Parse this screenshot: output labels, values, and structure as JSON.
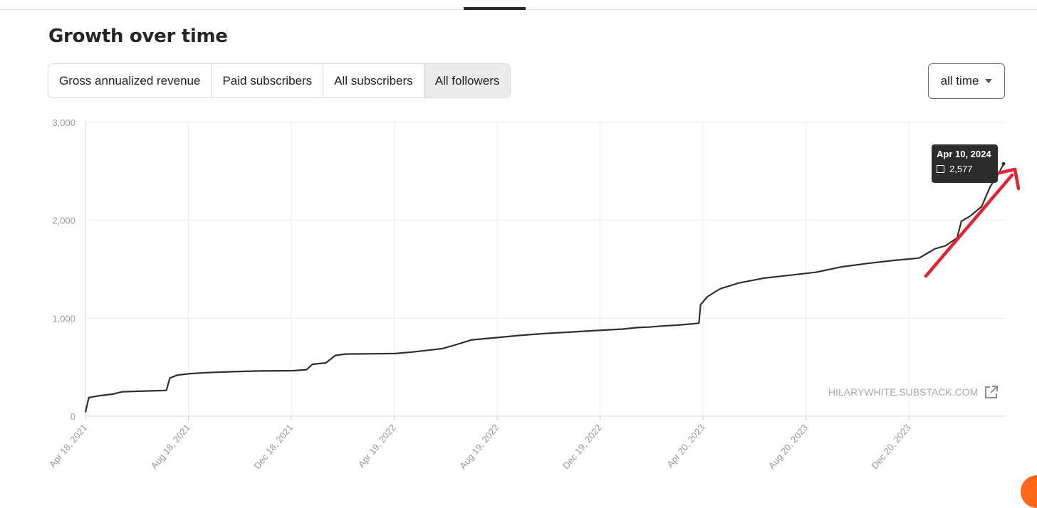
{
  "header": {
    "title": "Growth over time"
  },
  "metric_tabs": [
    {
      "label": "Gross annualized revenue",
      "active": false
    },
    {
      "label": "Paid subscribers",
      "active": false
    },
    {
      "label": "All subscribers",
      "active": false
    },
    {
      "label": "All followers",
      "active": true
    }
  ],
  "range_select": {
    "value": "all time",
    "icon": "caret-down-icon"
  },
  "watermark": {
    "text": "HILARYWHITE.SUBSTACK.COM",
    "icon": "external-link-icon"
  },
  "tooltip": {
    "date": "Apr 10, 2024",
    "value": "2,577"
  },
  "colors": {
    "line": "#2f2f2f",
    "grid": "#eeeeee",
    "annotation_arrow": "#e8202f",
    "tooltip_bg": "#2c2c2c",
    "brand": "#ff6719"
  },
  "chart_data": {
    "type": "line",
    "x_type": "date",
    "y_ticks": [
      "0",
      "1,000",
      "2,000",
      "3,000"
    ],
    "x_ticks": [
      "Apr 18, 2021",
      "Aug 18, 2021",
      "Dec 18, 2021",
      "Apr 19, 2022",
      "Aug 19, 2022",
      "Dec 19, 2022",
      "Apr 20, 2023",
      "Aug 20, 2023",
      "Dec 20, 2023"
    ],
    "xlim": [
      "2021-04-18",
      "2024-04-10"
    ],
    "ylim": [
      0,
      3000
    ],
    "grid": true,
    "series": [
      {
        "points": [
          [
            "2021-04-18",
            40
          ],
          [
            "2021-04-22",
            190
          ],
          [
            "2021-05-05",
            210
          ],
          [
            "2021-05-20",
            225
          ],
          [
            "2021-06-01",
            250
          ],
          [
            "2021-07-01",
            258
          ],
          [
            "2021-07-20",
            262
          ],
          [
            "2021-07-23",
            265
          ],
          [
            "2021-07-27",
            390
          ],
          [
            "2021-08-05",
            420
          ],
          [
            "2021-08-20",
            435
          ],
          [
            "2021-09-10",
            445
          ],
          [
            "2021-10-10",
            455
          ],
          [
            "2021-11-10",
            462
          ],
          [
            "2021-12-20",
            465
          ],
          [
            "2022-01-05",
            475
          ],
          [
            "2022-01-12",
            530
          ],
          [
            "2022-01-28",
            545
          ],
          [
            "2022-02-08",
            620
          ],
          [
            "2022-02-20",
            635
          ],
          [
            "2022-03-20",
            637
          ],
          [
            "2022-04-20",
            640
          ],
          [
            "2022-05-10",
            655
          ],
          [
            "2022-05-25",
            670
          ],
          [
            "2022-06-15",
            690
          ],
          [
            "2022-07-01",
            730
          ],
          [
            "2022-07-20",
            780
          ],
          [
            "2022-08-15",
            800
          ],
          [
            "2022-09-15",
            825
          ],
          [
            "2022-10-15",
            845
          ],
          [
            "2022-11-15",
            860
          ],
          [
            "2022-12-15",
            875
          ],
          [
            "2023-01-15",
            890
          ],
          [
            "2023-02-01",
            905
          ],
          [
            "2023-02-15",
            910
          ],
          [
            "2023-03-01",
            920
          ],
          [
            "2023-03-20",
            930
          ],
          [
            "2023-04-10",
            945
          ],
          [
            "2023-04-15",
            950
          ],
          [
            "2023-04-17",
            1140
          ],
          [
            "2023-04-25",
            1220
          ],
          [
            "2023-05-10",
            1300
          ],
          [
            "2023-06-01",
            1360
          ],
          [
            "2023-07-01",
            1410
          ],
          [
            "2023-08-01",
            1440
          ],
          [
            "2023-09-01",
            1470
          ],
          [
            "2023-10-01",
            1525
          ],
          [
            "2023-11-01",
            1560
          ],
          [
            "2023-12-01",
            1590
          ],
          [
            "2024-01-01",
            1615
          ],
          [
            "2024-01-10",
            1660
          ],
          [
            "2024-01-20",
            1710
          ],
          [
            "2024-02-01",
            1740
          ],
          [
            "2024-02-15",
            1820
          ],
          [
            "2024-02-20",
            1990
          ],
          [
            "2024-03-01",
            2040
          ],
          [
            "2024-03-15",
            2140
          ],
          [
            "2024-03-25",
            2340
          ],
          [
            "2024-04-05",
            2490
          ],
          [
            "2024-04-10",
            2577
          ]
        ]
      }
    ]
  }
}
